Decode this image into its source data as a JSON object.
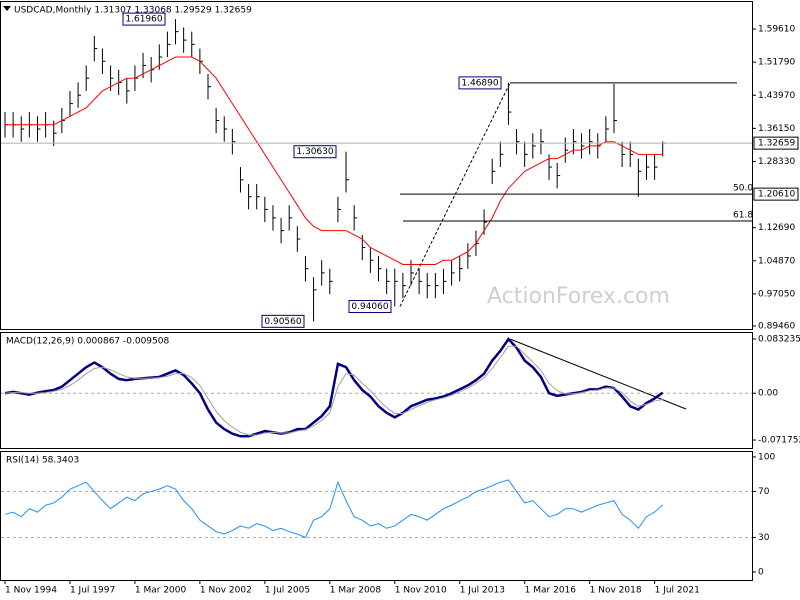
{
  "chart_data": [
    {
      "type": "ohlc",
      "title": "USDCAD,Monthly  1.31307 1.33068 1.29529 1.32659",
      "watermark": "ActionForex.com",
      "color": "#000000",
      "ylim": [
        0.8875,
        1.66
      ],
      "yticks": [
        {
          "value": 1.5961,
          "label": "1.59610"
        },
        {
          "value": 1.5179,
          "label": "1.51790"
        },
        {
          "value": 1.4397,
          "label": "1.43970"
        },
        {
          "value": 1.3615,
          "label": "1.36150"
        },
        {
          "value": 1.2833,
          "label": "1.28330"
        },
        {
          "value": 1.1269,
          "label": "1.12690"
        },
        {
          "value": 1.0487,
          "label": "1.04870"
        },
        {
          "value": 0.9705,
          "label": "0.97050"
        },
        {
          "value": 0.8946,
          "label": "0.89460"
        }
      ],
      "high": [
        1.4,
        1.4,
        1.39,
        1.4,
        1.39,
        1.4,
        1.38,
        1.41,
        1.45,
        1.47,
        1.51,
        1.58,
        1.55,
        1.51,
        1.5,
        1.48,
        1.51,
        1.54,
        1.53,
        1.56,
        1.59,
        1.6196,
        1.6,
        1.59,
        1.55,
        1.49,
        1.41,
        1.39,
        1.36,
        1.27,
        1.23,
        1.23,
        1.2,
        1.18,
        1.15,
        1.18,
        1.13,
        1.06,
        1.01,
        1.05,
        1.03,
        1.2,
        1.3063,
        1.18,
        1.11,
        1.08,
        1.06,
        1.03,
        1.03,
        1.02,
        1.05,
        1.03,
        1.02,
        1.02,
        1.03,
        1.05,
        1.06,
        1.09,
        1.12,
        1.17,
        1.29,
        1.33,
        1.4689,
        1.36,
        1.33,
        1.35,
        1.36,
        1.3,
        1.28,
        1.34,
        1.36,
        1.35,
        1.36,
        1.35,
        1.39,
        1.4667,
        1.33,
        1.33,
        1.29,
        1.3,
        1.3,
        1.3307
      ],
      "low": [
        1.34,
        1.34,
        1.33,
        1.34,
        1.33,
        1.34,
        1.32,
        1.35,
        1.39,
        1.41,
        1.45,
        1.52,
        1.49,
        1.45,
        1.44,
        1.42,
        1.45,
        1.48,
        1.47,
        1.5,
        1.53,
        1.56,
        1.54,
        1.53,
        1.49,
        1.43,
        1.35,
        1.33,
        1.3,
        1.21,
        1.17,
        1.17,
        1.14,
        1.12,
        1.09,
        1.12,
        1.07,
        1.0,
        0.9056,
        0.99,
        0.97,
        1.14,
        1.21,
        1.12,
        1.05,
        1.02,
        1.0,
        0.97,
        0.9406,
        0.96,
        0.99,
        0.97,
        0.96,
        0.96,
        0.97,
        0.99,
        1.0,
        1.03,
        1.06,
        1.11,
        1.23,
        1.27,
        1.37,
        1.3,
        1.27,
        1.29,
        1.3,
        1.24,
        1.22,
        1.28,
        1.3,
        1.29,
        1.3,
        1.29,
        1.33,
        1.35,
        1.27,
        1.27,
        1.2,
        1.24,
        1.24,
        1.2953
      ],
      "close": [
        1.37,
        1.37,
        1.36,
        1.37,
        1.36,
        1.37,
        1.35,
        1.38,
        1.42,
        1.44,
        1.48,
        1.55,
        1.52,
        1.48,
        1.47,
        1.45,
        1.48,
        1.51,
        1.5,
        1.53,
        1.56,
        1.59,
        1.57,
        1.56,
        1.52,
        1.46,
        1.38,
        1.36,
        1.33,
        1.24,
        1.2,
        1.2,
        1.17,
        1.15,
        1.12,
        1.15,
        1.1,
        1.03,
        0.98,
        1.02,
        1.0,
        1.17,
        1.24,
        1.15,
        1.08,
        1.05,
        1.03,
        1.0,
        1.0,
        0.99,
        1.02,
        1.0,
        0.99,
        0.99,
        1.0,
        1.02,
        1.03,
        1.06,
        1.09,
        1.14,
        1.26,
        1.3,
        1.4,
        1.33,
        1.3,
        1.32,
        1.33,
        1.27,
        1.25,
        1.31,
        1.33,
        1.32,
        1.33,
        1.32,
        1.36,
        1.38,
        1.3,
        1.3,
        1.26,
        1.27,
        1.27,
        1.3266
      ],
      "moving_average": {
        "color": "#ff0000",
        "values": [
          1.37,
          1.37,
          1.37,
          1.37,
          1.37,
          1.37,
          1.37,
          1.38,
          1.39,
          1.4,
          1.41,
          1.43,
          1.45,
          1.46,
          1.47,
          1.48,
          1.48,
          1.49,
          1.5,
          1.51,
          1.52,
          1.53,
          1.53,
          1.53,
          1.52,
          1.5,
          1.48,
          1.45,
          1.42,
          1.39,
          1.36,
          1.33,
          1.3,
          1.27,
          1.24,
          1.21,
          1.18,
          1.15,
          1.13,
          1.12,
          1.12,
          1.12,
          1.12,
          1.11,
          1.1,
          1.08,
          1.07,
          1.06,
          1.05,
          1.04,
          1.04,
          1.04,
          1.04,
          1.04,
          1.05,
          1.05,
          1.06,
          1.07,
          1.09,
          1.12,
          1.15,
          1.19,
          1.22,
          1.24,
          1.26,
          1.27,
          1.28,
          1.29,
          1.29,
          1.3,
          1.31,
          1.31,
          1.32,
          1.32,
          1.33,
          1.33,
          1.32,
          1.31,
          1.3,
          1.3,
          1.3,
          1.3
        ]
      },
      "annotations": [
        {
          "value": 1.6196,
          "label": "1.61960"
        },
        {
          "value": 1.4689,
          "label": "1.46890"
        },
        {
          "value": 1.3063,
          "label": "1.30630"
        },
        {
          "value": 0.9056,
          "label": "0.90560"
        },
        {
          "value": 0.9406,
          "label": "0.94060"
        }
      ],
      "levels": [
        {
          "name": "50.0",
          "value": 1.2061,
          "label": "1.20610"
        },
        {
          "name": "61.8",
          "value": 1.1426
        }
      ],
      "last_price": {
        "value": 1.32659,
        "label": "1.32659"
      }
    },
    {
      "type": "line",
      "title": "MACD(12,26,9) 0.000867 -0.009508",
      "ylim": [
        -0.084,
        0.0924
      ],
      "yticks": [
        0.083235,
        {
          "value": 0,
          "label": "0.00"
        },
        -0.071752
      ],
      "levels": [
        0
      ],
      "series": [
        {
          "color": "#000080",
          "width": 2.5,
          "values": [
            0.0,
            0.002,
            0.0,
            -0.002,
            0.001,
            0.003,
            0.005,
            0.01,
            0.02,
            0.03,
            0.04,
            0.047,
            0.04,
            0.03,
            0.022,
            0.02,
            0.022,
            0.023,
            0.024,
            0.025,
            0.03,
            0.035,
            0.028,
            0.015,
            0.0,
            -0.025,
            -0.045,
            -0.055,
            -0.062,
            -0.066,
            -0.066,
            -0.062,
            -0.058,
            -0.06,
            -0.062,
            -0.06,
            -0.055,
            -0.055,
            -0.045,
            -0.035,
            -0.02,
            0.045,
            0.04,
            0.02,
            0.005,
            -0.005,
            -0.02,
            -0.03,
            -0.037,
            -0.03,
            -0.02,
            -0.015,
            -0.01,
            -0.008,
            -0.005,
            0.0,
            0.006,
            0.012,
            0.02,
            0.03,
            0.05,
            0.065,
            0.083,
            0.07,
            0.05,
            0.04,
            0.025,
            0.0,
            -0.004,
            -0.002,
            0.0,
            0.002,
            0.006,
            0.006,
            0.01,
            0.008,
            -0.005,
            -0.02,
            -0.025,
            -0.015,
            -0.008,
            0.0009
          ]
        },
        {
          "color": "#a0a0a0",
          "width": 1,
          "values": [
            0.0,
            0.001,
            0.001,
            0.0,
            0.0,
            0.001,
            0.003,
            0.006,
            0.012,
            0.02,
            0.03,
            0.038,
            0.04,
            0.036,
            0.03,
            0.025,
            0.023,
            0.023,
            0.023,
            0.024,
            0.026,
            0.03,
            0.03,
            0.024,
            0.012,
            -0.008,
            -0.028,
            -0.042,
            -0.052,
            -0.06,
            -0.064,
            -0.064,
            -0.061,
            -0.06,
            -0.061,
            -0.061,
            -0.058,
            -0.056,
            -0.05,
            -0.042,
            -0.03,
            0.01,
            0.03,
            0.028,
            0.015,
            0.004,
            -0.01,
            -0.022,
            -0.031,
            -0.031,
            -0.025,
            -0.019,
            -0.014,
            -0.01,
            -0.007,
            -0.003,
            0.002,
            0.008,
            0.015,
            0.024,
            0.038,
            0.055,
            0.072,
            0.072,
            0.06,
            0.048,
            0.035,
            0.015,
            0.004,
            -0.001,
            -0.001,
            0.001,
            0.004,
            0.005,
            0.008,
            0.008,
            0.001,
            -0.012,
            -0.02,
            -0.017,
            -0.012,
            -0.0095
          ]
        }
      ]
    },
    {
      "type": "line",
      "title": "RSI(14) 58.3403",
      "ylim": [
        -7,
        104.3
      ],
      "yticks": [
        100,
        70,
        30,
        0
      ],
      "levels": [
        70,
        30
      ],
      "categories": [
        "1 Nov 1994",
        null,
        null,
        null,
        null,
        null,
        null,
        null,
        "1 Jul 1997",
        null,
        null,
        null,
        null,
        null,
        null,
        null,
        "1 Mar 2000",
        null,
        null,
        null,
        null,
        null,
        null,
        null,
        "1 Nov 2002",
        null,
        null,
        null,
        null,
        null,
        null,
        null,
        "1 Jul 2005",
        null,
        null,
        null,
        null,
        null,
        null,
        null,
        "1 Mar 2008",
        null,
        null,
        null,
        null,
        null,
        null,
        null,
        "1 Nov 2010",
        null,
        null,
        null,
        null,
        null,
        null,
        null,
        "1 Jul 2013",
        null,
        null,
        null,
        null,
        null,
        null,
        null,
        "1 Mar 2016",
        null,
        null,
        null,
        null,
        null,
        null,
        null,
        "1 Nov 2018",
        null,
        null,
        null,
        null,
        null,
        null,
        null,
        "1 Jul 2021",
        null
      ],
      "series": [
        {
          "color": "#1e90ff",
          "width": 1,
          "values": [
            50,
            52,
            48,
            55,
            52,
            58,
            60,
            65,
            72,
            75,
            78,
            70,
            62,
            55,
            60,
            65,
            62,
            68,
            70,
            72,
            75,
            72,
            62,
            55,
            45,
            40,
            35,
            33,
            36,
            40,
            38,
            42,
            40,
            36,
            38,
            35,
            33,
            30,
            45,
            48,
            55,
            78,
            62,
            48,
            45,
            40,
            42,
            38,
            40,
            45,
            50,
            48,
            45,
            50,
            55,
            58,
            62,
            65,
            70,
            72,
            75,
            78,
            80,
            70,
            60,
            62,
            55,
            48,
            50,
            55,
            55,
            52,
            55,
            58,
            60,
            62,
            50,
            45,
            38,
            48,
            52,
            58.34
          ]
        }
      ]
    }
  ]
}
